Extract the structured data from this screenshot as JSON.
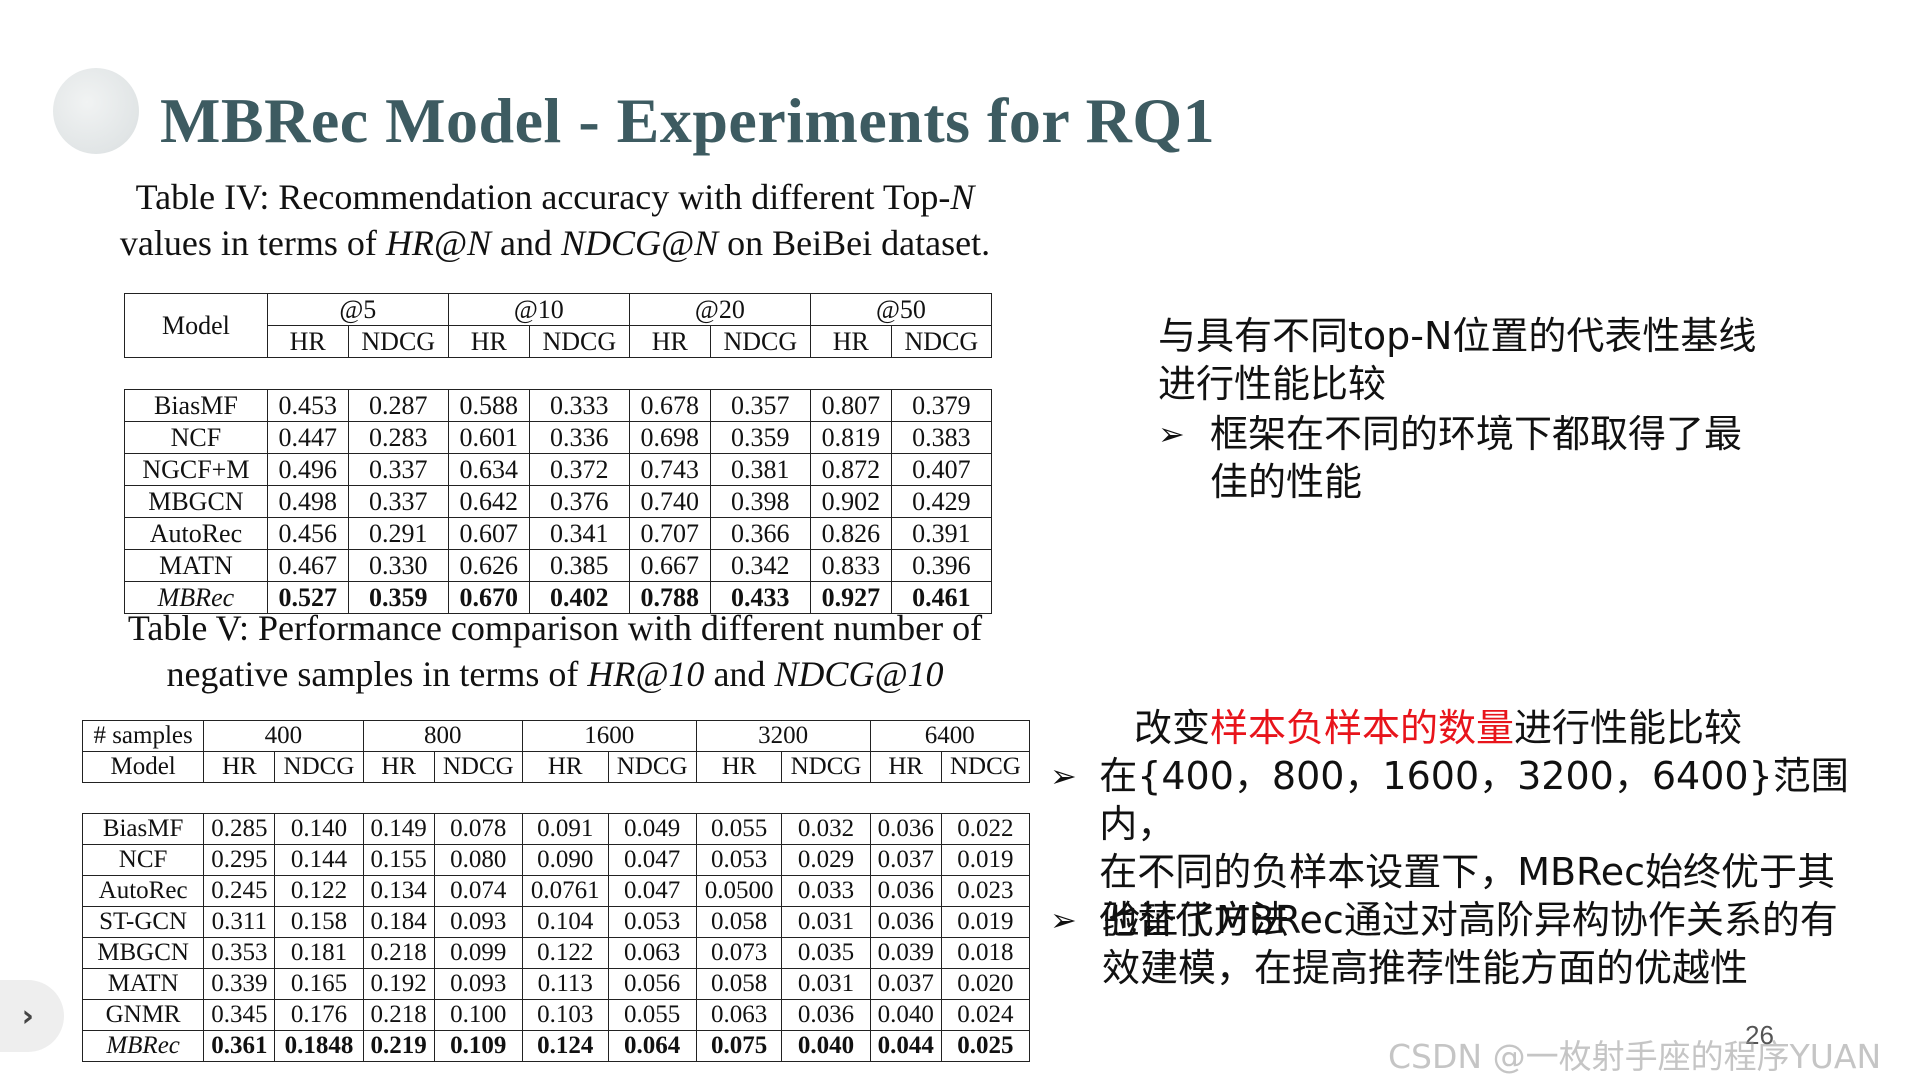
{
  "slide": {
    "title": "MBRec Model - Experiments for RQ1",
    "page_number": "26",
    "watermark": "CSDN @一枚射手座的程序YUAN"
  },
  "table4": {
    "caption_lines": [
      [
        "Table IV: Recommendation accuracy with different Top-",
        "N"
      ],
      [
        "values in terms of ",
        "HR@N",
        " and ",
        "NDCG@N",
        " on BeiBei dataset."
      ]
    ],
    "model_header": "Model",
    "groups": [
      "@5",
      "@10",
      "@20",
      "@50"
    ],
    "sub_headers": [
      "HR",
      "NDCG"
    ],
    "rows": [
      {
        "model": "BiasMF",
        "values": [
          "0.453",
          "0.287",
          "0.588",
          "0.333",
          "0.678",
          "0.357",
          "0.807",
          "0.379"
        ]
      },
      {
        "model": "NCF",
        "values": [
          "0.447",
          "0.283",
          "0.601",
          "0.336",
          "0.698",
          "0.359",
          "0.819",
          "0.383"
        ]
      },
      {
        "model": "NGCF+M",
        "values": [
          "0.496",
          "0.337",
          "0.634",
          "0.372",
          "0.743",
          "0.381",
          "0.872",
          "0.407"
        ]
      },
      {
        "model": "MBGCN",
        "values": [
          "0.498",
          "0.337",
          "0.642",
          "0.376",
          "0.740",
          "0.398",
          "0.902",
          "0.429"
        ]
      },
      {
        "model": "AutoRec",
        "values": [
          "0.456",
          "0.291",
          "0.607",
          "0.341",
          "0.707",
          "0.366",
          "0.826",
          "0.391"
        ]
      },
      {
        "model": "MATN",
        "values": [
          "0.467",
          "0.330",
          "0.626",
          "0.385",
          "0.667",
          "0.342",
          "0.833",
          "0.396"
        ]
      },
      {
        "model": "MBRec",
        "values": [
          "0.527",
          "0.359",
          "0.670",
          "0.402",
          "0.788",
          "0.433",
          "0.927",
          "0.461"
        ],
        "best": true
      }
    ]
  },
  "table5": {
    "caption_lines": [
      [
        "Table V: Performance comparison with different number of"
      ],
      [
        "negative samples in terms of ",
        "HR@10",
        " and ",
        "NDCG@10"
      ]
    ],
    "samples_header": "# samples",
    "model_header": "Model",
    "groups": [
      "400",
      "800",
      "1600",
      "3200",
      "6400"
    ],
    "sub_headers": [
      "HR",
      "NDCG"
    ],
    "rows": [
      {
        "model": "BiasMF",
        "values": [
          "0.285",
          "0.140",
          "0.149",
          "0.078",
          "0.091",
          "0.049",
          "0.055",
          "0.032",
          "0.036",
          "0.022"
        ]
      },
      {
        "model": "NCF",
        "values": [
          "0.295",
          "0.144",
          "0.155",
          "0.080",
          "0.090",
          "0.047",
          "0.053",
          "0.029",
          "0.037",
          "0.019"
        ]
      },
      {
        "model": "AutoRec",
        "values": [
          "0.245",
          "0.122",
          "0.134",
          "0.074",
          "0.0761",
          "0.047",
          "0.0500",
          "0.033",
          "0.036",
          "0.023"
        ]
      },
      {
        "model": "ST-GCN",
        "values": [
          "0.311",
          "0.158",
          "0.184",
          "0.093",
          "0.104",
          "0.053",
          "0.058",
          "0.031",
          "0.036",
          "0.019"
        ]
      },
      {
        "model": "MBGCN",
        "values": [
          "0.353",
          "0.181",
          "0.218",
          "0.099",
          "0.122",
          "0.063",
          "0.073",
          "0.035",
          "0.039",
          "0.018"
        ]
      },
      {
        "model": "MATN",
        "values": [
          "0.339",
          "0.165",
          "0.192",
          "0.093",
          "0.113",
          "0.056",
          "0.058",
          "0.031",
          "0.037",
          "0.020"
        ]
      },
      {
        "model": "GNMR",
        "values": [
          "0.345",
          "0.176",
          "0.218",
          "0.100",
          "0.103",
          "0.055",
          "0.063",
          "0.036",
          "0.040",
          "0.024"
        ]
      },
      {
        "model": "MBRec",
        "values": [
          "0.361",
          "0.1848",
          "0.219",
          "0.109",
          "0.124",
          "0.064",
          "0.075",
          "0.040",
          "0.044",
          "0.025"
        ],
        "best": true
      }
    ]
  },
  "notes": {
    "block1": {
      "heading_lines": [
        "与具有不同top-N位置的代表性基线",
        "进行性能比较"
      ],
      "bullet_lines": [
        "框架在不同的环境下都取得了最",
        "佳的性能"
      ]
    },
    "block2": {
      "heading_prefix": "改变",
      "heading_highlight": "样本负样本的数量",
      "heading_suffix": "进行性能比较",
      "bullet1_lines": [
        "在{400，800，1600，3200，6400}范围内，",
        "在不同的负样本设置下，MBRec始终优于其",
        "他替代方法"
      ],
      "bullet2_lines": [
        "验证了MBRec通过对高阶异构协作关系的有",
        "效建模，在提高推荐性能方面的优越性"
      ]
    },
    "bullet_icon": "arrowhead-bullet-icon"
  },
  "colors": {
    "title": "#3d5b61",
    "highlight": "#e8141b"
  }
}
